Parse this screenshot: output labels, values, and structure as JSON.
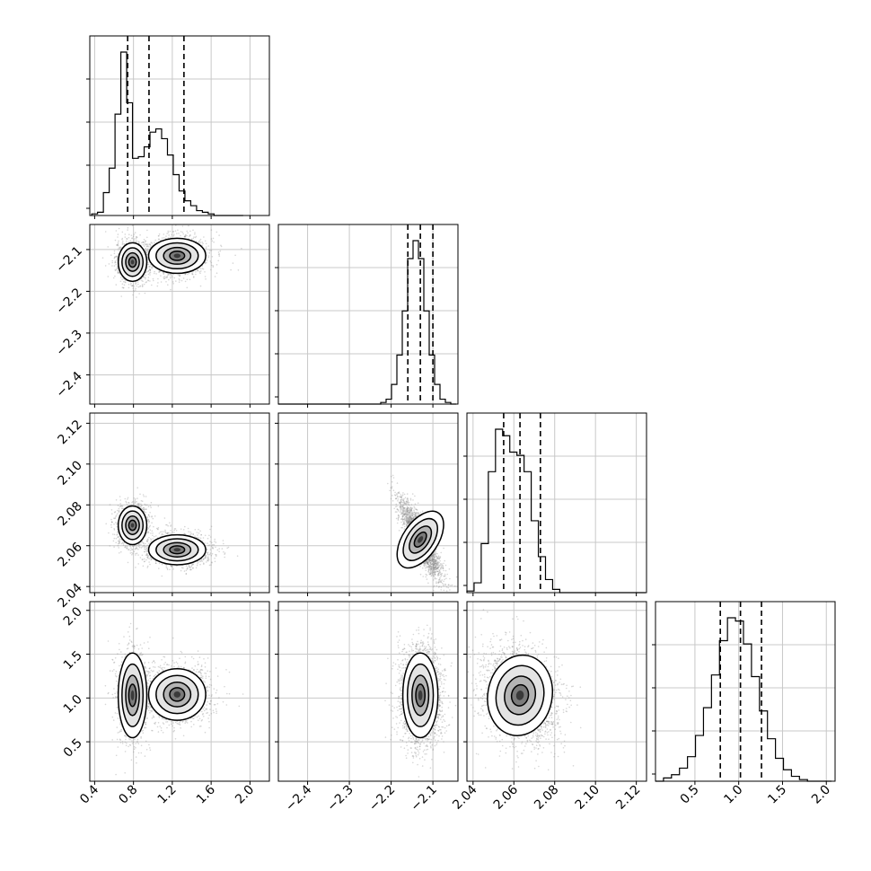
{
  "chart_data": {
    "type": "corner",
    "grid": true,
    "parameters": [
      {
        "range": [
          0.35,
          2.2
        ],
        "ticks": [
          0.4,
          0.8,
          1.2,
          1.6,
          2.0
        ],
        "tick_labels": [
          "0.4",
          "0.8",
          "1.2",
          "1.6",
          "2.0"
        ],
        "quantiles": [
          0.74,
          0.96,
          1.32
        ],
        "modes": [
          {
            "center": 0.79,
            "sigma": 0.07,
            "weight": 0.45
          },
          {
            "center": 1.25,
            "sigma": 0.14,
            "weight": 0.55
          }
        ]
      },
      {
        "range": [
          -2.47,
          -2.04
        ],
        "ticks": [
          -2.4,
          -2.3,
          -2.2,
          -2.1
        ],
        "tick_labels": [
          "−2.4",
          "−2.3",
          "−2.2",
          "−2.1"
        ],
        "quantiles": [
          -2.16,
          -2.13,
          -2.1
        ],
        "modes": [
          {
            "center": -2.13,
            "sigma": 0.025,
            "weight": 1.0
          }
        ]
      },
      {
        "range": [
          2.037,
          2.125
        ],
        "ticks": [
          2.04,
          2.06,
          2.08,
          2.1,
          2.12
        ],
        "tick_labels": [
          "2.04",
          "2.06",
          "2.08",
          "2.10",
          "2.12"
        ],
        "quantiles": [
          2.055,
          2.063,
          2.073
        ],
        "modes": [
          {
            "center": 2.07,
            "sigma": 0.0045,
            "weight": 0.45
          },
          {
            "center": 2.058,
            "sigma": 0.0055,
            "weight": 0.55
          }
        ]
      },
      {
        "range": [
          0.05,
          2.1
        ],
        "ticks": [
          0.5,
          1.0,
          1.5,
          2.0
        ],
        "tick_labels": [
          "0.5",
          "1.0",
          "1.5",
          "2.0"
        ],
        "quantiles": [
          0.79,
          1.02,
          1.26
        ],
        "modes": [
          {
            "center": 1.03,
            "sigma": 0.23,
            "weight": 1.0
          }
        ]
      }
    ],
    "histograms": [
      {
        "bins": [
          0.37,
          0.43,
          0.49,
          0.55,
          0.61,
          0.67,
          0.73,
          0.79,
          0.85,
          0.91,
          0.97,
          1.03,
          1.09,
          1.15,
          1.21,
          1.27,
          1.33,
          1.39,
          1.45,
          1.51,
          1.57,
          1.63,
          1.69,
          1.75,
          1.81,
          1.87
        ],
        "counts": [
          0.01,
          0.02,
          0.14,
          0.29,
          0.62,
          1.0,
          0.69,
          0.35,
          0.36,
          0.42,
          0.51,
          0.53,
          0.47,
          0.37,
          0.25,
          0.15,
          0.09,
          0.06,
          0.03,
          0.02,
          0.01,
          0.0,
          0.0,
          0.0,
          0.0,
          0.0
        ]
      },
      {
        "bins": [
          -2.47,
          -2.4571,
          -2.4442,
          -2.4313,
          -2.4184,
          -2.4055,
          -2.3926,
          -2.3797,
          -2.3668,
          -2.3539,
          -2.341,
          -2.3281,
          -2.3152,
          -2.3023,
          -2.2894,
          -2.2765,
          -2.2636,
          -2.2507,
          -2.2378,
          -2.2249,
          -2.212,
          -2.1991,
          -2.1862,
          -2.1733,
          -2.1604,
          -2.1475,
          -2.1346,
          -2.1217,
          -2.1088,
          -2.0959,
          -2.083,
          -2.0701,
          -2.0572
        ],
        "counts": [
          0,
          0,
          0,
          0,
          0,
          0,
          0,
          0,
          0,
          0,
          0,
          0,
          0,
          0,
          0,
          0,
          0,
          0,
          0,
          0.01,
          0.03,
          0.12,
          0.3,
          0.57,
          0.89,
          1.0,
          0.89,
          0.57,
          0.3,
          0.12,
          0.03,
          0.01,
          0
        ]
      },
      {
        "bins": [
          2.037,
          2.0405,
          2.044,
          2.0475,
          2.051,
          2.0545,
          2.058,
          2.0615,
          2.065,
          2.0685,
          2.072,
          2.0755,
          2.079,
          2.0825,
          2.086,
          2.0895,
          2.093,
          2.0965,
          2.1,
          2.1035,
          2.107,
          2.1105,
          2.114,
          2.1175,
          2.121
        ],
        "counts": [
          0.01,
          0.06,
          0.3,
          0.74,
          1.0,
          0.96,
          0.86,
          0.84,
          0.74,
          0.44,
          0.22,
          0.08,
          0.02,
          0.0,
          0,
          0,
          0,
          0,
          0,
          0,
          0,
          0,
          0,
          0,
          0
        ]
      },
      {
        "bins": [
          0.05,
          0.1413,
          0.2326,
          0.3239,
          0.4152,
          0.5065,
          0.5978,
          0.6891,
          0.7804,
          0.8717,
          0.963,
          1.0543,
          1.1456,
          1.2369,
          1.3282,
          1.4195,
          1.5108,
          1.6021,
          1.6934,
          1.7847,
          1.876,
          1.9673
        ],
        "counts": [
          0.0,
          0.02,
          0.04,
          0.08,
          0.15,
          0.28,
          0.45,
          0.65,
          0.86,
          1.0,
          0.98,
          0.84,
          0.64,
          0.43,
          0.26,
          0.14,
          0.07,
          0.03,
          0.01,
          0.0,
          0.0,
          0.0
        ]
      }
    ],
    "pairs": [
      {
        "row": 1,
        "col": 0,
        "blobs": [
          {
            "cx": 0.79,
            "cy": -2.13,
            "sx": 0.07,
            "sy": 0.022,
            "rho": 0.0,
            "w": 0.45
          },
          {
            "cx": 1.25,
            "cy": -2.115,
            "sx": 0.14,
            "sy": 0.02,
            "rho": 0.0,
            "w": 0.55
          }
        ]
      },
      {
        "row": 2,
        "col": 0,
        "blobs": [
          {
            "cx": 0.79,
            "cy": 2.07,
            "sx": 0.07,
            "sy": 0.0045,
            "rho": 0.0,
            "w": 0.45
          },
          {
            "cx": 1.25,
            "cy": 2.058,
            "sx": 0.14,
            "sy": 0.0035,
            "rho": 0.0,
            "w": 0.55
          }
        ]
      },
      {
        "row": 2,
        "col": 1,
        "blobs": [
          {
            "cx": -2.13,
            "cy": 2.063,
            "sx": 0.02,
            "sy": 0.0075,
            "rho": -0.85,
            "w": 1.0
          }
        ]
      },
      {
        "row": 3,
        "col": 0,
        "blobs": [
          {
            "cx": 0.79,
            "cy": 1.03,
            "sx": 0.07,
            "sy": 0.23,
            "rho": 0.0,
            "w": 0.45
          },
          {
            "cx": 1.25,
            "cy": 1.04,
            "sx": 0.14,
            "sy": 0.14,
            "rho": 0.0,
            "w": 0.55
          }
        ]
      },
      {
        "row": 3,
        "col": 1,
        "blobs": [
          {
            "cx": -2.13,
            "cy": 1.03,
            "sx": 0.02,
            "sy": 0.23,
            "rho": 0.0,
            "w": 1.0
          }
        ]
      },
      {
        "row": 3,
        "col": 2,
        "blobs": [
          {
            "cx": 2.063,
            "cy": 1.03,
            "sx": 0.0075,
            "sy": 0.22,
            "rho": -0.25,
            "w": 1.0
          }
        ]
      }
    ],
    "colors": {
      "line": "#000000",
      "grid": "#c8c8c8",
      "point": "#8a8a8a"
    }
  }
}
